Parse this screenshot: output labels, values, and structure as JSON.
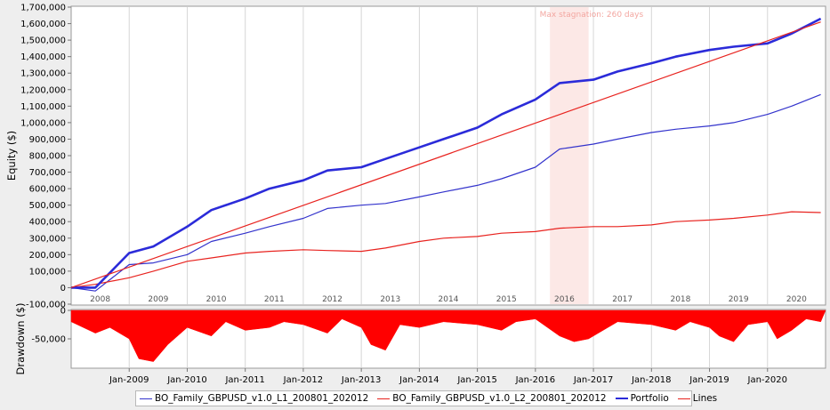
{
  "chart_data": [
    {
      "type": "line",
      "ylabel": "Equity ($)",
      "ylim": [
        -100000,
        1700000
      ],
      "y_ticks": [
        "-100,000",
        "0",
        "100,000",
        "200,000",
        "300,000",
        "400,000",
        "500,000",
        "600,000",
        "700,000",
        "800,000",
        "900,000",
        "1,000,000",
        "1,100,000",
        "1,200,000",
        "1,300,000",
        "1,400,000",
        "1,500,000",
        "1,600,000",
        "1,700,000"
      ],
      "x_year_labels": [
        "2008",
        "2009",
        "2010",
        "2011",
        "2012",
        "2013",
        "2014",
        "2015",
        "2016",
        "2017",
        "2018",
        "2019",
        "2020"
      ],
      "annotation": "Max stagnation: 260 days",
      "stagnation_span": [
        "2016-04",
        "2016-12"
      ],
      "grid": true,
      "series": [
        {
          "name": "BO_Family_GBPUSD_v1.0_L1_200801_202012",
          "color": "#3333cc",
          "x": [
            "2008-01",
            "2008-06",
            "2009-01",
            "2009-06",
            "2010-01",
            "2010-06",
            "2011-01",
            "2011-06",
            "2012-01",
            "2012-06",
            "2013-01",
            "2013-06",
            "2014-01",
            "2014-06",
            "2015-01",
            "2015-06",
            "2016-01",
            "2016-06",
            "2017-01",
            "2017-06",
            "2018-01",
            "2018-06",
            "2019-01",
            "2019-06",
            "2020-01",
            "2020-06",
            "2020-12"
          ],
          "values": [
            0,
            -20000,
            140000,
            150000,
            200000,
            280000,
            330000,
            370000,
            420000,
            480000,
            500000,
            510000,
            550000,
            580000,
            620000,
            660000,
            730000,
            840000,
            870000,
            900000,
            940000,
            960000,
            980000,
            1000000,
            1050000,
            1100000,
            1170000
          ]
        },
        {
          "name": "BO_Family_GBPUSD_v1.0_L2_200801_202012",
          "color": "#e8231f",
          "x": [
            "2008-01",
            "2008-06",
            "2009-01",
            "2009-06",
            "2010-01",
            "2010-06",
            "2011-01",
            "2011-06",
            "2012-01",
            "2012-06",
            "2013-01",
            "2013-06",
            "2014-01",
            "2014-06",
            "2015-01",
            "2015-06",
            "2016-01",
            "2016-06",
            "2017-01",
            "2017-06",
            "2018-01",
            "2018-06",
            "2019-01",
            "2019-06",
            "2020-01",
            "2020-06",
            "2020-12"
          ],
          "values": [
            0,
            20000,
            60000,
            100000,
            160000,
            180000,
            210000,
            220000,
            230000,
            225000,
            220000,
            240000,
            280000,
            300000,
            310000,
            330000,
            340000,
            360000,
            370000,
            370000,
            380000,
            400000,
            410000,
            420000,
            440000,
            460000,
            455000
          ]
        },
        {
          "name": "Portfolio",
          "color": "#2b2bd9",
          "bold": true,
          "x": [
            "2008-01",
            "2008-06",
            "2009-01",
            "2009-06",
            "2010-01",
            "2010-06",
            "2011-01",
            "2011-06",
            "2012-01",
            "2012-06",
            "2013-01",
            "2013-06",
            "2014-01",
            "2014-06",
            "2015-01",
            "2015-06",
            "2016-01",
            "2016-06",
            "2017-01",
            "2017-06",
            "2018-01",
            "2018-06",
            "2019-01",
            "2019-06",
            "2020-01",
            "2020-06",
            "2020-12"
          ],
          "values": [
            0,
            0,
            210000,
            250000,
            370000,
            470000,
            540000,
            600000,
            650000,
            710000,
            730000,
            780000,
            850000,
            900000,
            970000,
            1050000,
            1140000,
            1240000,
            1260000,
            1310000,
            1360000,
            1400000,
            1440000,
            1460000,
            1480000,
            1540000,
            1630000
          ]
        },
        {
          "name": "Lines",
          "color": "#e8231f",
          "x": [
            "2008-01",
            "2020-12"
          ],
          "values": [
            0,
            1610000
          ]
        }
      ]
    },
    {
      "type": "area",
      "ylabel": "Drawdown ($)",
      "ylim": [
        -100000,
        0
      ],
      "y_ticks": [
        "0",
        "-50,000"
      ],
      "x_ticks": [
        "Jan-2009",
        "Jan-2010",
        "Jan-2011",
        "Jan-2012",
        "Jan-2013",
        "Jan-2014",
        "Jan-2015",
        "Jan-2016",
        "Jan-2017",
        "Jan-2018",
        "Jan-2019",
        "Jan-2020"
      ],
      "color": "#ff0000",
      "x": [
        "2008-01",
        "2008-06",
        "2008-09",
        "2009-01",
        "2009-03",
        "2009-06",
        "2009-09",
        "2010-01",
        "2010-06",
        "2010-09",
        "2011-01",
        "2011-06",
        "2011-09",
        "2012-01",
        "2012-06",
        "2012-09",
        "2013-01",
        "2013-03",
        "2013-06",
        "2013-09",
        "2014-01",
        "2014-06",
        "2015-01",
        "2015-06",
        "2015-09",
        "2016-01",
        "2016-06",
        "2016-09",
        "2016-12",
        "2017-06",
        "2018-01",
        "2018-06",
        "2018-09",
        "2019-01",
        "2019-03",
        "2019-06",
        "2019-09",
        "2020-01",
        "2020-03",
        "2020-06",
        "2020-09",
        "2020-12"
      ],
      "values": [
        -20000,
        -40000,
        -30000,
        -50000,
        -85000,
        -90000,
        -60000,
        -30000,
        -45000,
        -20000,
        -35000,
        -30000,
        -20000,
        -25000,
        -40000,
        -15000,
        -30000,
        -60000,
        -70000,
        -25000,
        -30000,
        -20000,
        -25000,
        -35000,
        -20000,
        -15000,
        -45000,
        -55000,
        -50000,
        -20000,
        -25000,
        -35000,
        -20000,
        -30000,
        -45000,
        -55000,
        -25000,
        -20000,
        -50000,
        -35000,
        -15000,
        -20000
      ]
    }
  ],
  "legend": {
    "items": [
      {
        "label": "BO_Family_GBPUSD_v1.0_L1_200801_202012",
        "color": "#3333cc"
      },
      {
        "label": "BO_Family_GBPUSD_v1.0_L2_200801_202012",
        "color": "#e8231f"
      },
      {
        "label": "Portfolio",
        "color": "#2b2bd9",
        "bold": true
      },
      {
        "label": "Lines",
        "color": "#e8231f"
      }
    ]
  }
}
